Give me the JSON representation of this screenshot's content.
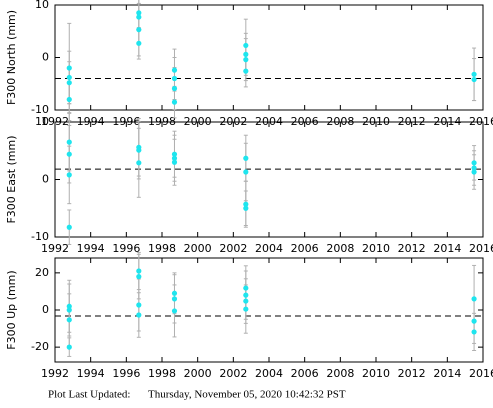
{
  "chart_data": [
    {
      "type": "scatter",
      "ylabel": "F300 North (mm)",
      "color": "#1ee5ee",
      "error_color": "#b0b0b0",
      "ref_color": "#000000",
      "xlim": [
        1992,
        2016
      ],
      "xticks": [
        1992,
        1994,
        1996,
        1998,
        2000,
        2002,
        2004,
        2006,
        2008,
        2010,
        2012,
        2014,
        2016
      ],
      "ylim": [
        -10,
        10
      ],
      "yticks": [
        -10,
        0,
        10
      ],
      "ref_line": -4,
      "x": [
        1992.8,
        1992.8,
        1992.8,
        1992.8,
        1996.7,
        1996.7,
        1996.7,
        1996.7,
        1998.7,
        1998.7,
        1998.7,
        1998.7,
        2002.7,
        2002.7,
        2002.7,
        2002.7,
        2015.5,
        2015.5
      ],
      "values": [
        -2,
        -3.8,
        -4.8,
        -8,
        8.5,
        7.7,
        5.3,
        2.7,
        -2.4,
        -4,
        -5.9,
        -8.5,
        2.3,
        0.6,
        -0.4,
        -2.6,
        -3.2,
        -4.2
      ],
      "errors": [
        8.5,
        5,
        4,
        4,
        3,
        5,
        5,
        3,
        4,
        4,
        4,
        3,
        5,
        4,
        4,
        3,
        5,
        4
      ]
    },
    {
      "type": "scatter",
      "ylabel": "F300 East (mm)",
      "color": "#1ee5ee",
      "error_color": "#b0b0b0",
      "ref_color": "#000000",
      "xlim": [
        1992,
        2016
      ],
      "xticks": [
        1992,
        1994,
        1996,
        1998,
        2000,
        2002,
        2004,
        2006,
        2008,
        2010,
        2012,
        2014,
        2016
      ],
      "ylim": [
        -10,
        10
      ],
      "yticks": [
        -10,
        0,
        10
      ],
      "ref_line": 1.8,
      "x": [
        1992.8,
        1992.8,
        1992.8,
        1992.8,
        1996.7,
        1996.7,
        1996.7,
        1998.7,
        1998.7,
        1998.7,
        2002.7,
        2002.7,
        2002.7,
        2002.7,
        2015.5,
        2015.5,
        2015.5
      ],
      "values": [
        6.5,
        4.4,
        0.8,
        -8.3,
        5.6,
        5.1,
        2.9,
        4.4,
        3.7,
        3,
        3.7,
        1.3,
        -4.3,
        -5,
        2.9,
        2,
        1.3
      ],
      "errors": [
        5,
        5,
        5,
        3,
        5,
        5,
        6,
        4,
        4,
        4,
        4,
        5,
        4,
        3,
        3,
        3,
        3
      ]
    },
    {
      "type": "scatter",
      "ylabel": "F300 Up (mm)",
      "color": "#1ee5ee",
      "error_color": "#b0b0b0",
      "ref_color": "#000000",
      "xlim": [
        1992,
        2016
      ],
      "xticks": [
        1992,
        1994,
        1996,
        1998,
        2000,
        2002,
        2004,
        2006,
        2008,
        2010,
        2012,
        2014,
        2016
      ],
      "ylim": [
        -28,
        28
      ],
      "yticks": [
        -20,
        0,
        20
      ],
      "ref_line": -3.2,
      "x": [
        1992.8,
        1992.8,
        1992.8,
        1992.8,
        1996.7,
        1996.7,
        1996.7,
        1996.7,
        1998.7,
        1998.7,
        1998.7,
        2002.7,
        2002.7,
        2002.7,
        2002.7,
        2015.5,
        2015.5,
        2015.5
      ],
      "values": [
        2,
        0,
        -5.3,
        -20,
        21,
        18,
        2.7,
        -2.7,
        9,
        6,
        -0.5,
        11.8,
        8,
        4.8,
        0.5,
        6,
        -6,
        -11.8
      ],
      "errors": [
        14,
        14,
        14,
        5,
        10,
        12,
        14,
        12,
        11,
        13,
        14,
        12,
        13,
        12,
        13,
        18,
        12,
        10
      ]
    }
  ],
  "footer": {
    "label": "Plot Last Updated:",
    "timestamp": "Thursday, November 05, 2020 10:42:32 PST"
  }
}
